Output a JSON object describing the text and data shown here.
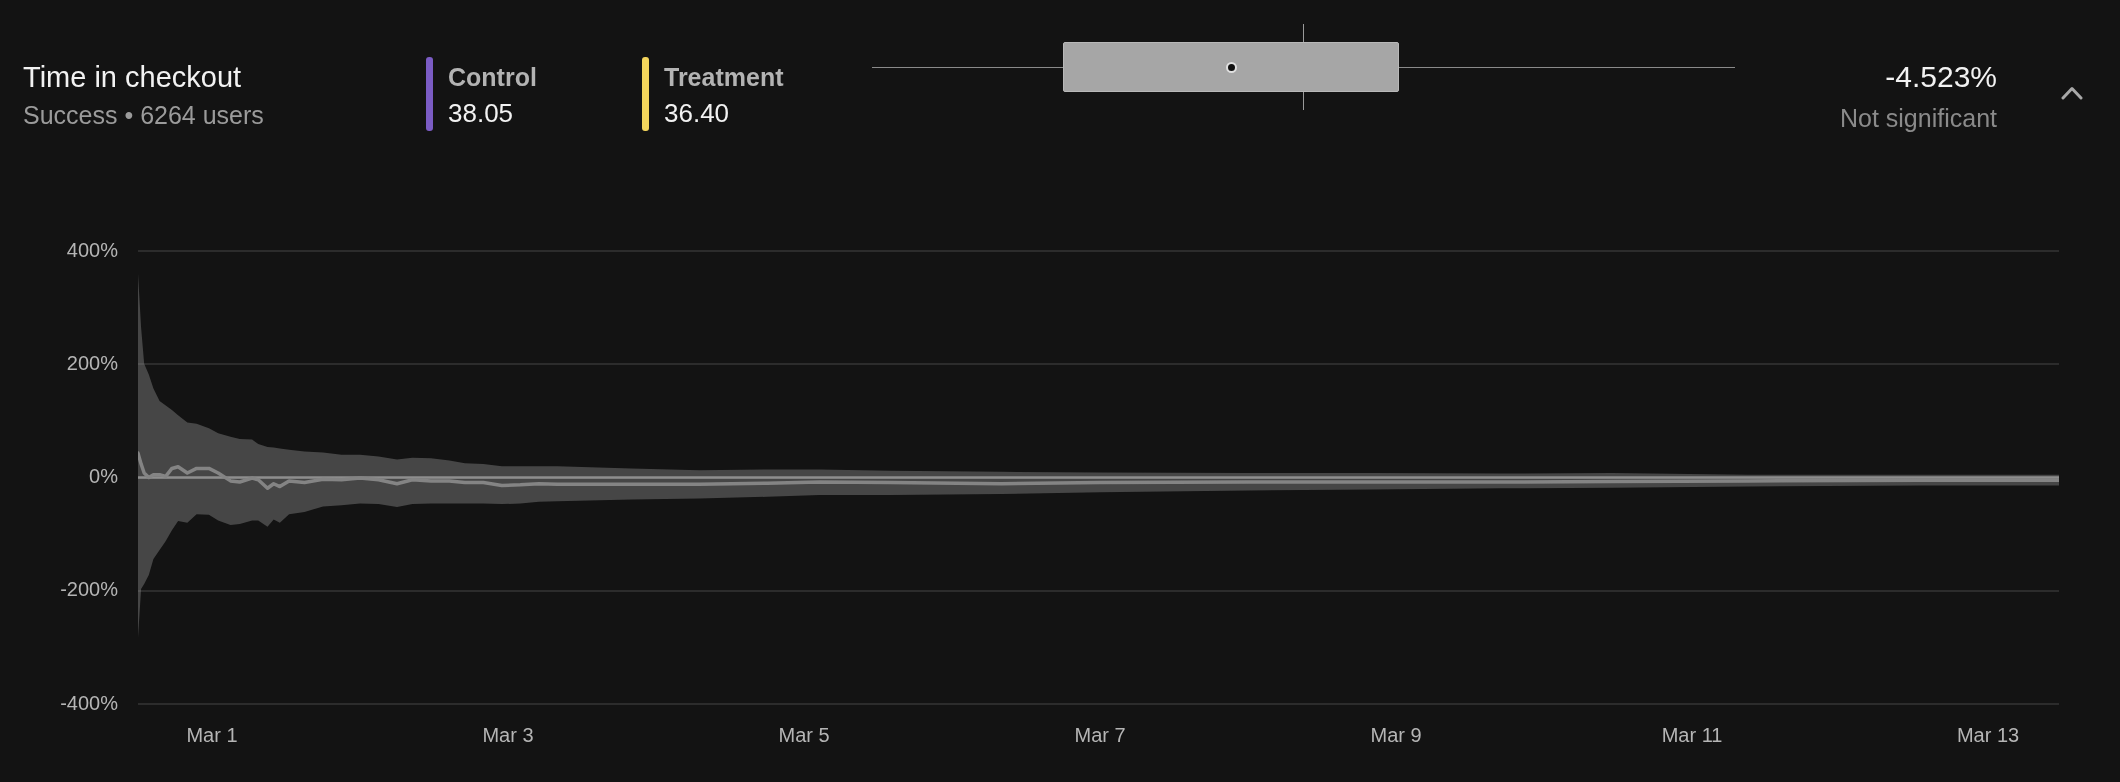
{
  "chart_data": [
    {
      "type": "other",
      "title": "Time in checkout",
      "subtitle": "Success • 6264 users",
      "series": [
        {
          "name": "Control",
          "color": "#7b5cc4",
          "values": [
            38.05
          ],
          "value_labels": [
            "38.05"
          ]
        },
        {
          "name": "Treatment",
          "color": "#f3d55c",
          "values": [
            36.4
          ],
          "value_labels": [
            "36.40"
          ]
        }
      ],
      "annotations": [
        "-4.523%",
        "Not significant"
      ]
    },
    {
      "type": "line",
      "x": [
        "--02-28T12:00",
        "--02-28T12:30",
        "--02-28T13:00",
        "--02-28T13:45",
        "--02-28T14:30",
        "--02-28T15:30",
        "--02-28T16:30",
        "--02-28T17:30",
        "--02-28T18:30",
        "--02-28T20:00",
        "--02-28T21:30",
        "--02-28T23:30",
        "--03-01T01:00",
        "--03-01T03:00",
        "--03-01T04:30",
        "--03-01T06:30",
        "--03-01T07:30",
        "--03-01T09:00",
        "--03-01T10:00",
        "--03-01T11:00",
        "--03-01T12:30",
        "--03-01T15:00",
        "--03-01T18:00",
        "--03-01T21:00",
        "--03-02T00:00",
        "--03-02T03:00",
        "--03-02T06:00",
        "--03-02T08:30",
        "--03-02T11:30",
        "--03-02T14:30",
        "--03-02T17:00",
        "--03-02T20:00",
        "--03-02T23:00",
        "--03-03T02:00",
        "--03-03T05:00",
        "--03-03T08:00",
        "--03-03T20:00",
        "--03-04T07:00",
        "--03-04T18:00",
        "--03-05T02:30",
        "--03-05T14:00",
        "--03-06T08:00",
        "--03-07T00:00",
        "--03-08T00:00",
        "--03-08T20:00",
        "--03-09T17:00",
        "--03-10T11:00",
        "--03-11T09:00",
        "--03-12T13:00",
        "--03-13T11:30"
      ],
      "series": [
        {
          "color": "#848484",
          "values": [
            43,
            24,
            8,
            0,
            5,
            5,
            2,
            16,
            19,
            8,
            16,
            16,
            8,
            -6,
            -8,
            -1,
            -4,
            -19,
            -11,
            -16,
            -6,
            -9,
            -3,
            -4,
            -1,
            -4,
            -11,
            -4,
            -6,
            -6,
            -9,
            -9,
            -14,
            -13,
            -11,
            -12,
            -12,
            -12,
            -10,
            -8,
            -9,
            -11,
            -9,
            -8,
            -8,
            -8,
            -7,
            -6,
            -5,
            -5
          ],
          "upper": [
            360,
            265,
            201,
            182,
            157,
            135,
            127,
            119,
            110,
            97,
            95,
            87,
            78,
            72,
            68,
            67,
            59,
            54,
            53,
            51,
            49,
            46,
            44,
            40,
            40,
            37,
            32,
            35,
            34,
            30,
            25,
            24,
            20,
            20,
            20,
            20,
            16,
            13,
            14,
            14,
            12,
            10,
            9,
            8,
            8,
            7,
            8,
            5,
            5,
            5
          ],
          "lower": [
            -283,
            -197,
            -188,
            -172,
            -144,
            -128,
            -112,
            -93,
            -77,
            -80,
            -65,
            -66,
            -76,
            -84,
            -82,
            -76,
            -76,
            -87,
            -74,
            -80,
            -65,
            -61,
            -51,
            -49,
            -46,
            -47,
            -52,
            -47,
            -46,
            -46,
            -46,
            -46,
            -47,
            -46,
            -43,
            -42,
            -39,
            -37,
            -34,
            -31,
            -31,
            -29,
            -26,
            -23,
            -21,
            -19,
            -18,
            -16,
            -14,
            -14
          ]
        }
      ],
      "xlim": [
        "--02-28T12:00",
        "--03-13T11:30"
      ],
      "xticks": [
        {
          "value": "--03-01",
          "label": "Mar 1"
        },
        {
          "value": "--03-03",
          "label": "Mar 3"
        },
        {
          "value": "--03-05",
          "label": "Mar 5"
        },
        {
          "value": "--03-07",
          "label": "Mar 7"
        },
        {
          "value": "--03-09",
          "label": "Mar 9"
        },
        {
          "value": "--03-11",
          "label": "Mar 11"
        },
        {
          "value": "--03-13",
          "label": "Mar 13"
        }
      ],
      "ylim": [
        -400,
        400
      ],
      "yticks": [
        {
          "value": -400,
          "label": "-400%"
        },
        {
          "value": -200,
          "label": "-200%"
        },
        {
          "value": 0,
          "label": "0%"
        },
        {
          "value": 200,
          "label": "200%"
        },
        {
          "value": 400,
          "label": "400%"
        }
      ],
      "grid": "y",
      "ref_lines": [
        {
          "axis": "y",
          "value": 0,
          "color": "#8e8e8e"
        }
      ]
    }
  ]
}
